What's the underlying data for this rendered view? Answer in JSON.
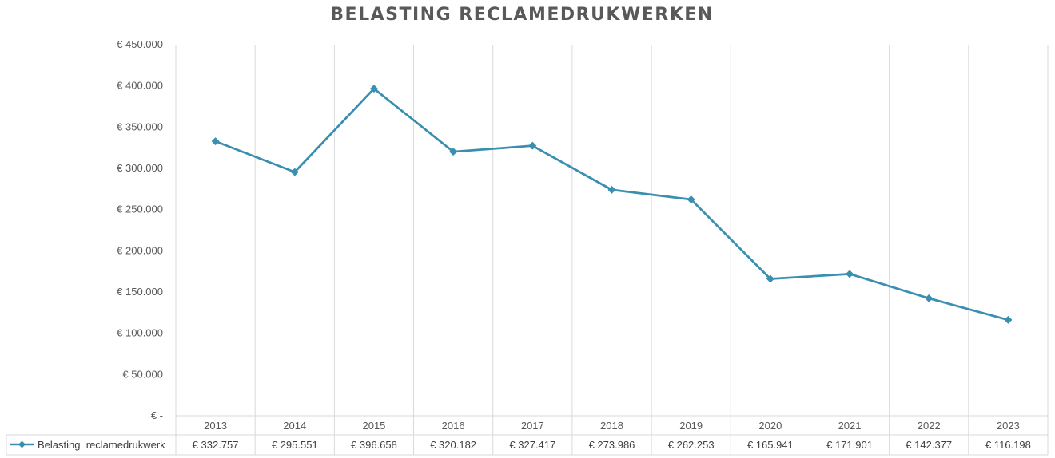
{
  "chart_data": {
    "type": "line",
    "title": "BELASTING RECLAMEDRUKWERKEN",
    "categories": [
      "2013",
      "2014",
      "2015",
      "2016",
      "2017",
      "2018",
      "2019",
      "2020",
      "2021",
      "2022",
      "2023"
    ],
    "series": [
      {
        "name": "Belasting  reclamedrukwerk",
        "values": [
          332757,
          295551,
          396658,
          320182,
          327417,
          273986,
          262253,
          165941,
          171901,
          142377,
          116198
        ],
        "value_labels": [
          "€ 332.757",
          "€ 295.551",
          "€ 396.658",
          "€ 320.182",
          "€ 327.417",
          "€ 273.986",
          "€ 262.253",
          "€ 165.941",
          "€ 171.901",
          "€ 142.377",
          "€ 116.198"
        ],
        "color": "#3a8fb0",
        "marker": "diamond"
      }
    ],
    "ylim": [
      0,
      450000
    ],
    "yticks": [
      0,
      50000,
      100000,
      150000,
      200000,
      250000,
      300000,
      350000,
      400000,
      450000
    ],
    "ytick_labels": [
      "€ -",
      "€ 50.000",
      "€ 100.000",
      "€ 150.000",
      "€ 200.000",
      "€ 250.000",
      "€ 300.000",
      "€ 350.000",
      "€ 400.000",
      "€ 450.000"
    ],
    "grid": "vertical",
    "legend": "data-table",
    "colors": {
      "line": "#3a8fb0",
      "grid": "#d9d9d9",
      "text": "#595959"
    }
  }
}
